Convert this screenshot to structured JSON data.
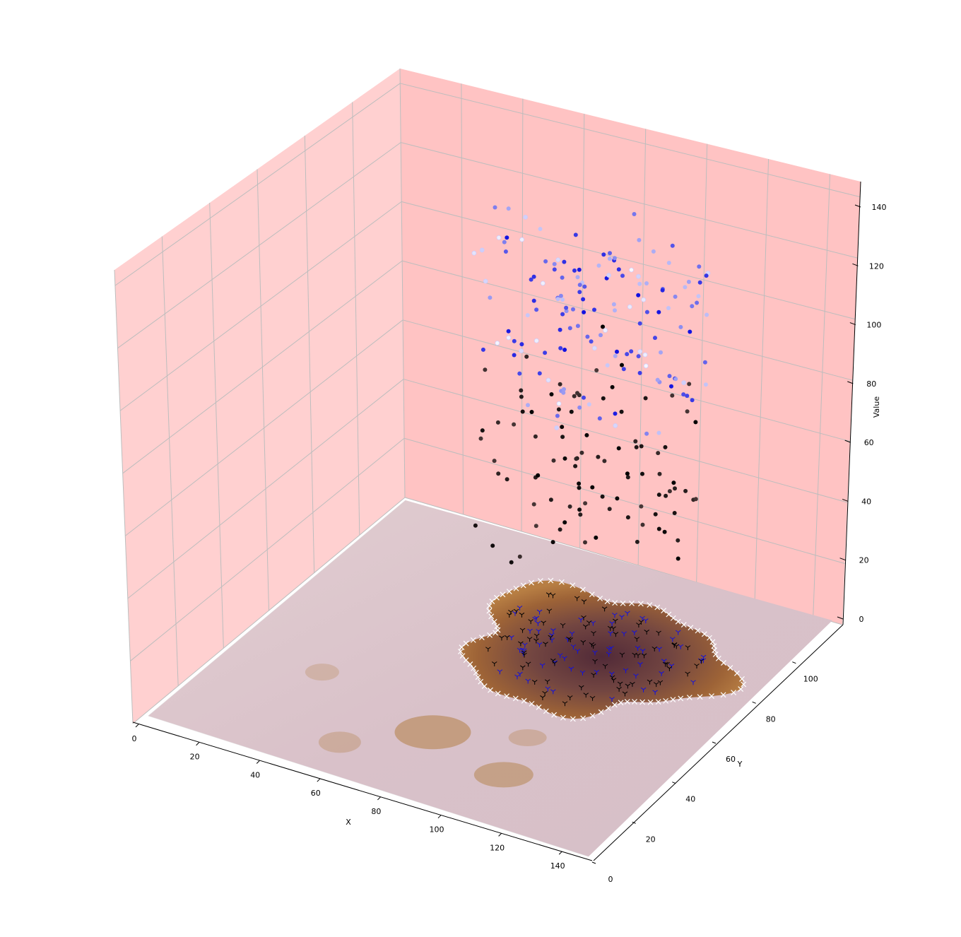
{
  "chart_data": {
    "type": "scatter",
    "projection": "3d",
    "xlabel": "X",
    "ylabel": "Y",
    "zlabel": "Value",
    "xlim": [
      0,
      150
    ],
    "ylim": [
      0,
      120
    ],
    "zlim": [
      0,
      145
    ],
    "x_ticks": [
      "0",
      "20",
      "40",
      "60",
      "80",
      "100",
      "120",
      "140"
    ],
    "y_ticks": [
      "0",
      "20",
      "40",
      "60",
      "80",
      "100"
    ],
    "z_ticks": [
      "0",
      "20",
      "40",
      "60",
      "80",
      "100",
      "120",
      "140"
    ],
    "grid": true,
    "pane_color": "#ffc0c0",
    "floor": {
      "description_colors": {
        "skin": "#d8c2c8",
        "lesion_edge": "#a8682e",
        "lesion_core": "#4a2230"
      },
      "lesion_region": {
        "x_range": [
          52,
          130
        ],
        "y_range": [
          55,
          110
        ]
      }
    },
    "floor_markers": [
      {
        "name": "boundary",
        "marker": "x",
        "color": "#ffffff",
        "count": 92
      },
      {
        "name": "inner-blue",
        "marker": "tri",
        "color": "#1010e0",
        "count": 70
      },
      {
        "name": "inner-black",
        "marker": "tri",
        "color": "#000000",
        "count": 85
      }
    ],
    "series": [
      {
        "marker": "o",
        "color_range": [
          "#000000",
          "#6a5050"
        ],
        "z_range": [
          40,
          100
        ],
        "count": 95
      },
      {
        "marker": "o",
        "color_range": [
          "#1010e0",
          "#ffffff"
        ],
        "z_range": [
          95,
          145
        ],
        "count": 150
      }
    ]
  }
}
